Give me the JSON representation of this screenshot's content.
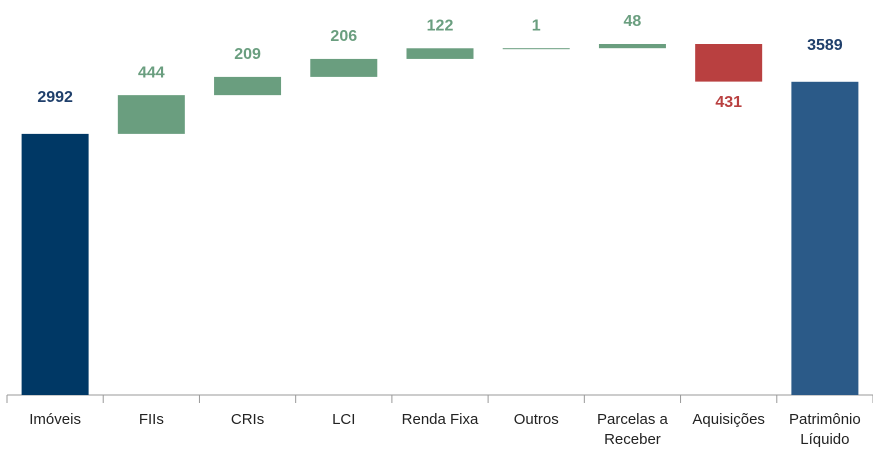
{
  "chart_data": {
    "type": "waterfall",
    "categories": [
      "Imóveis",
      "FIIs",
      "CRIs",
      "LCI",
      "Renda Fixa",
      "Outros",
      "Parcelas a Receber",
      "Aquisições",
      "Patrimônio Líquido"
    ],
    "values": [
      2992,
      444,
      209,
      206,
      122,
      1,
      48,
      -431,
      3589
    ],
    "value_labels": [
      "2992",
      "444",
      "209",
      "206",
      "122",
      "1",
      "48",
      "431",
      "3589"
    ],
    "colors": [
      "#003865",
      "#6a9e7f",
      "#6a9e7f",
      "#6a9e7f",
      "#6a9e7f",
      "#6a9e7f",
      "#6a9e7f",
      "#b94040",
      "#2b5a88"
    ]
  }
}
